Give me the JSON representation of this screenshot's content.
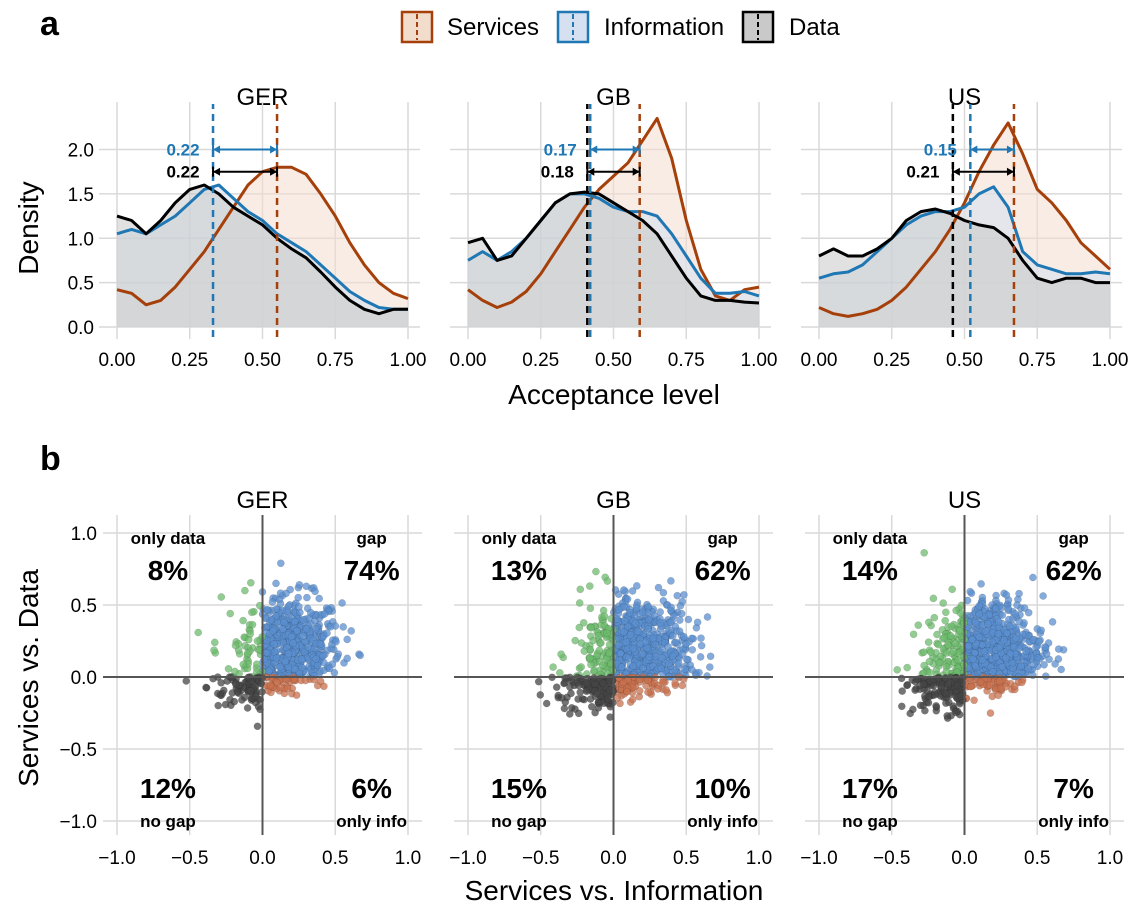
{
  "legend": {
    "entries": [
      {
        "label": "Services",
        "color": "#a5400b",
        "fill": "#f2ddcd"
      },
      {
        "label": "Information",
        "color": "#1f77b4",
        "fill": "#d5e1f0"
      },
      {
        "label": "Data",
        "color": "#000000",
        "fill": "#c9c9c9"
      }
    ]
  },
  "panel_a": {
    "letter": "a",
    "ylabel": "Density",
    "xlabel": "Acceptance level",
    "x_ticks": [
      "0.00",
      "0.25",
      "0.50",
      "0.75",
      "1.00"
    ],
    "y_ticks": [
      "0.0",
      "0.5",
      "1.0",
      "1.5",
      "2.0"
    ]
  },
  "panel_b": {
    "letter": "b",
    "ylabel": "Services vs. Data",
    "xlabel": "Services vs. Information",
    "x_ticks": [
      "−1.0",
      "−0.5",
      "0.0",
      "0.5",
      "1.0"
    ],
    "y_ticks": [
      "−1.0",
      "−0.5",
      "0.0",
      "0.5",
      "1.0"
    ],
    "quadrant_labels": {
      "top_left": "only data",
      "top_right": "gap",
      "bottom_left": "no gap",
      "bottom_right": "only info"
    },
    "colors": {
      "gap": "#5b8fcf",
      "only_data": "#6dbb6d",
      "only_info": "#c8714f",
      "no_gap": "#454545"
    }
  },
  "chart_data": [
    {
      "type": "area",
      "panel": "a",
      "facets": [
        {
          "title": "GER",
          "xlim": [
            0,
            1
          ],
          "ylim": [
            0,
            2.4
          ],
          "series": [
            {
              "name": "Services",
              "x": [
                0,
                0.05,
                0.1,
                0.15,
                0.2,
                0.25,
                0.3,
                0.35,
                0.4,
                0.45,
                0.5,
                0.55,
                0.6,
                0.65,
                0.7,
                0.75,
                0.8,
                0.85,
                0.9,
                0.95,
                1.0
              ],
              "y": [
                0.42,
                0.38,
                0.25,
                0.3,
                0.45,
                0.65,
                0.85,
                1.1,
                1.35,
                1.6,
                1.75,
                1.8,
                1.8,
                1.72,
                1.5,
                1.25,
                0.95,
                0.7,
                0.5,
                0.38,
                0.32
              ]
            },
            {
              "name": "Information",
              "x": [
                0,
                0.05,
                0.1,
                0.15,
                0.2,
                0.25,
                0.3,
                0.35,
                0.4,
                0.45,
                0.5,
                0.55,
                0.6,
                0.65,
                0.7,
                0.75,
                0.8,
                0.85,
                0.9,
                0.95,
                1.0
              ],
              "y": [
                1.05,
                1.1,
                1.05,
                1.15,
                1.25,
                1.4,
                1.55,
                1.6,
                1.45,
                1.3,
                1.2,
                1.05,
                0.95,
                0.85,
                0.7,
                0.55,
                0.4,
                0.3,
                0.22,
                0.2,
                0.2
              ]
            },
            {
              "name": "Data",
              "x": [
                0,
                0.05,
                0.1,
                0.15,
                0.2,
                0.25,
                0.3,
                0.35,
                0.4,
                0.45,
                0.5,
                0.55,
                0.6,
                0.65,
                0.7,
                0.75,
                0.8,
                0.85,
                0.9,
                0.95,
                1.0
              ],
              "y": [
                1.25,
                1.2,
                1.05,
                1.2,
                1.4,
                1.55,
                1.6,
                1.5,
                1.35,
                1.25,
                1.15,
                1.0,
                0.88,
                0.78,
                0.62,
                0.45,
                0.3,
                0.2,
                0.15,
                0.2,
                0.2
              ]
            }
          ],
          "vlines": [
            {
              "series": "Services",
              "x": 0.55
            },
            {
              "series": "Information",
              "x": 0.33
            }
          ],
          "annotations": [
            {
              "series": "Information",
              "text": "0.22",
              "from": 0.33,
              "to": 0.55,
              "y": 2.0
            },
            {
              "series": "Data",
              "text": "0.22",
              "from": 0.33,
              "to": 0.55,
              "y": 1.75
            }
          ]
        },
        {
          "title": "GB",
          "xlim": [
            0,
            1
          ],
          "ylim": [
            0,
            2.4
          ],
          "series": [
            {
              "name": "Services",
              "x": [
                0,
                0.05,
                0.1,
                0.15,
                0.2,
                0.25,
                0.3,
                0.35,
                0.4,
                0.45,
                0.5,
                0.55,
                0.6,
                0.65,
                0.7,
                0.75,
                0.8,
                0.85,
                0.9,
                0.95,
                1.0
              ],
              "y": [
                0.42,
                0.3,
                0.22,
                0.28,
                0.4,
                0.6,
                0.85,
                1.1,
                1.35,
                1.55,
                1.7,
                1.85,
                2.1,
                2.35,
                1.9,
                1.2,
                0.65,
                0.35,
                0.3,
                0.42,
                0.45
              ]
            },
            {
              "name": "Information",
              "x": [
                0,
                0.05,
                0.1,
                0.15,
                0.2,
                0.25,
                0.3,
                0.35,
                0.4,
                0.45,
                0.5,
                0.55,
                0.6,
                0.65,
                0.7,
                0.75,
                0.8,
                0.85,
                0.9,
                0.95,
                1.0
              ],
              "y": [
                0.75,
                0.85,
                0.75,
                0.85,
                1.0,
                1.2,
                1.4,
                1.5,
                1.5,
                1.45,
                1.35,
                1.3,
                1.3,
                1.25,
                1.05,
                0.8,
                0.55,
                0.38,
                0.38,
                0.4,
                0.35
              ]
            },
            {
              "name": "Data",
              "x": [
                0,
                0.05,
                0.1,
                0.15,
                0.2,
                0.25,
                0.3,
                0.35,
                0.4,
                0.45,
                0.5,
                0.55,
                0.6,
                0.65,
                0.7,
                0.75,
                0.8,
                0.85,
                0.9,
                0.95,
                1.0
              ],
              "y": [
                0.95,
                1.0,
                0.75,
                0.8,
                1.0,
                1.2,
                1.4,
                1.5,
                1.52,
                1.5,
                1.4,
                1.3,
                1.2,
                1.05,
                0.8,
                0.55,
                0.35,
                0.3,
                0.3,
                0.28,
                0.27
              ]
            }
          ],
          "vlines": [
            {
              "series": "Services",
              "x": 0.59
            },
            {
              "series": "Information",
              "x": 0.42
            },
            {
              "series": "Data",
              "x": 0.41
            }
          ],
          "annotations": [
            {
              "series": "Information",
              "text": "0.17",
              "from": 0.42,
              "to": 0.59,
              "y": 2.0
            },
            {
              "series": "Data",
              "text": "0.18",
              "from": 0.41,
              "to": 0.59,
              "y": 1.75
            }
          ]
        },
        {
          "title": "US",
          "xlim": [
            0,
            1
          ],
          "ylim": [
            0,
            2.4
          ],
          "series": [
            {
              "name": "Services",
              "x": [
                0,
                0.05,
                0.1,
                0.15,
                0.2,
                0.25,
                0.3,
                0.35,
                0.4,
                0.45,
                0.5,
                0.55,
                0.6,
                0.65,
                0.7,
                0.75,
                0.8,
                0.85,
                0.9,
                0.95,
                1.0
              ],
              "y": [
                0.22,
                0.15,
                0.12,
                0.15,
                0.2,
                0.3,
                0.45,
                0.65,
                0.85,
                1.1,
                1.4,
                1.75,
                2.05,
                2.3,
                1.95,
                1.55,
                1.4,
                1.2,
                0.95,
                0.8,
                0.65
              ]
            },
            {
              "name": "Information",
              "x": [
                0,
                0.05,
                0.1,
                0.15,
                0.2,
                0.25,
                0.3,
                0.35,
                0.4,
                0.45,
                0.5,
                0.55,
                0.6,
                0.65,
                0.7,
                0.75,
                0.8,
                0.85,
                0.9,
                0.95,
                1.0
              ],
              "y": [
                0.55,
                0.6,
                0.62,
                0.7,
                0.85,
                1.0,
                1.15,
                1.25,
                1.3,
                1.3,
                1.35,
                1.5,
                1.58,
                1.35,
                0.85,
                0.7,
                0.65,
                0.6,
                0.6,
                0.62,
                0.6
              ]
            },
            {
              "name": "Data",
              "x": [
                0,
                0.05,
                0.1,
                0.15,
                0.2,
                0.25,
                0.3,
                0.35,
                0.4,
                0.45,
                0.5,
                0.55,
                0.6,
                0.65,
                0.7,
                0.75,
                0.8,
                0.85,
                0.9,
                0.95,
                1.0
              ],
              "y": [
                0.8,
                0.88,
                0.8,
                0.8,
                0.88,
                1.0,
                1.2,
                1.3,
                1.33,
                1.28,
                1.2,
                1.15,
                1.12,
                1.0,
                0.75,
                0.55,
                0.5,
                0.55,
                0.55,
                0.5,
                0.5
              ]
            }
          ],
          "vlines": [
            {
              "series": "Services",
              "x": 0.67
            },
            {
              "series": "Information",
              "x": 0.52
            },
            {
              "series": "Data",
              "x": 0.46
            }
          ],
          "annotations": [
            {
              "series": "Information",
              "text": "0.15",
              "from": 0.52,
              "to": 0.67,
              "y": 2.0
            },
            {
              "series": "Data",
              "text": "0.21",
              "from": 0.46,
              "to": 0.67,
              "y": 1.75
            }
          ]
        }
      ]
    },
    {
      "type": "scatter",
      "panel": "b",
      "facets": [
        {
          "title": "GER",
          "xlim": [
            -1.1,
            1.1
          ],
          "ylim": [
            -1.1,
            1.1
          ],
          "percentages": {
            "only_data": "8%",
            "gap": "74%",
            "no_gap": "12%",
            "only_info": "6%"
          },
          "points": {
            "gap": 520,
            "only_data": 55,
            "only_info": 45,
            "no_gap": 85
          }
        },
        {
          "title": "GB",
          "xlim": [
            -1.1,
            1.1
          ],
          "ylim": [
            -1.1,
            1.1
          ],
          "percentages": {
            "only_data": "13%",
            "gap": "62%",
            "no_gap": "15%",
            "only_info": "10%"
          },
          "points": {
            "gap": 520,
            "only_data": 110,
            "only_info": 85,
            "no_gap": 125
          }
        },
        {
          "title": "US",
          "xlim": [
            -1.1,
            1.1
          ],
          "ylim": [
            -1.1,
            1.1
          ],
          "percentages": {
            "only_data": "14%",
            "gap": "62%",
            "no_gap": "17%",
            "only_info": "7%"
          },
          "points": {
            "gap": 560,
            "only_data": 125,
            "only_info": 65,
            "no_gap": 150
          }
        }
      ]
    }
  ]
}
